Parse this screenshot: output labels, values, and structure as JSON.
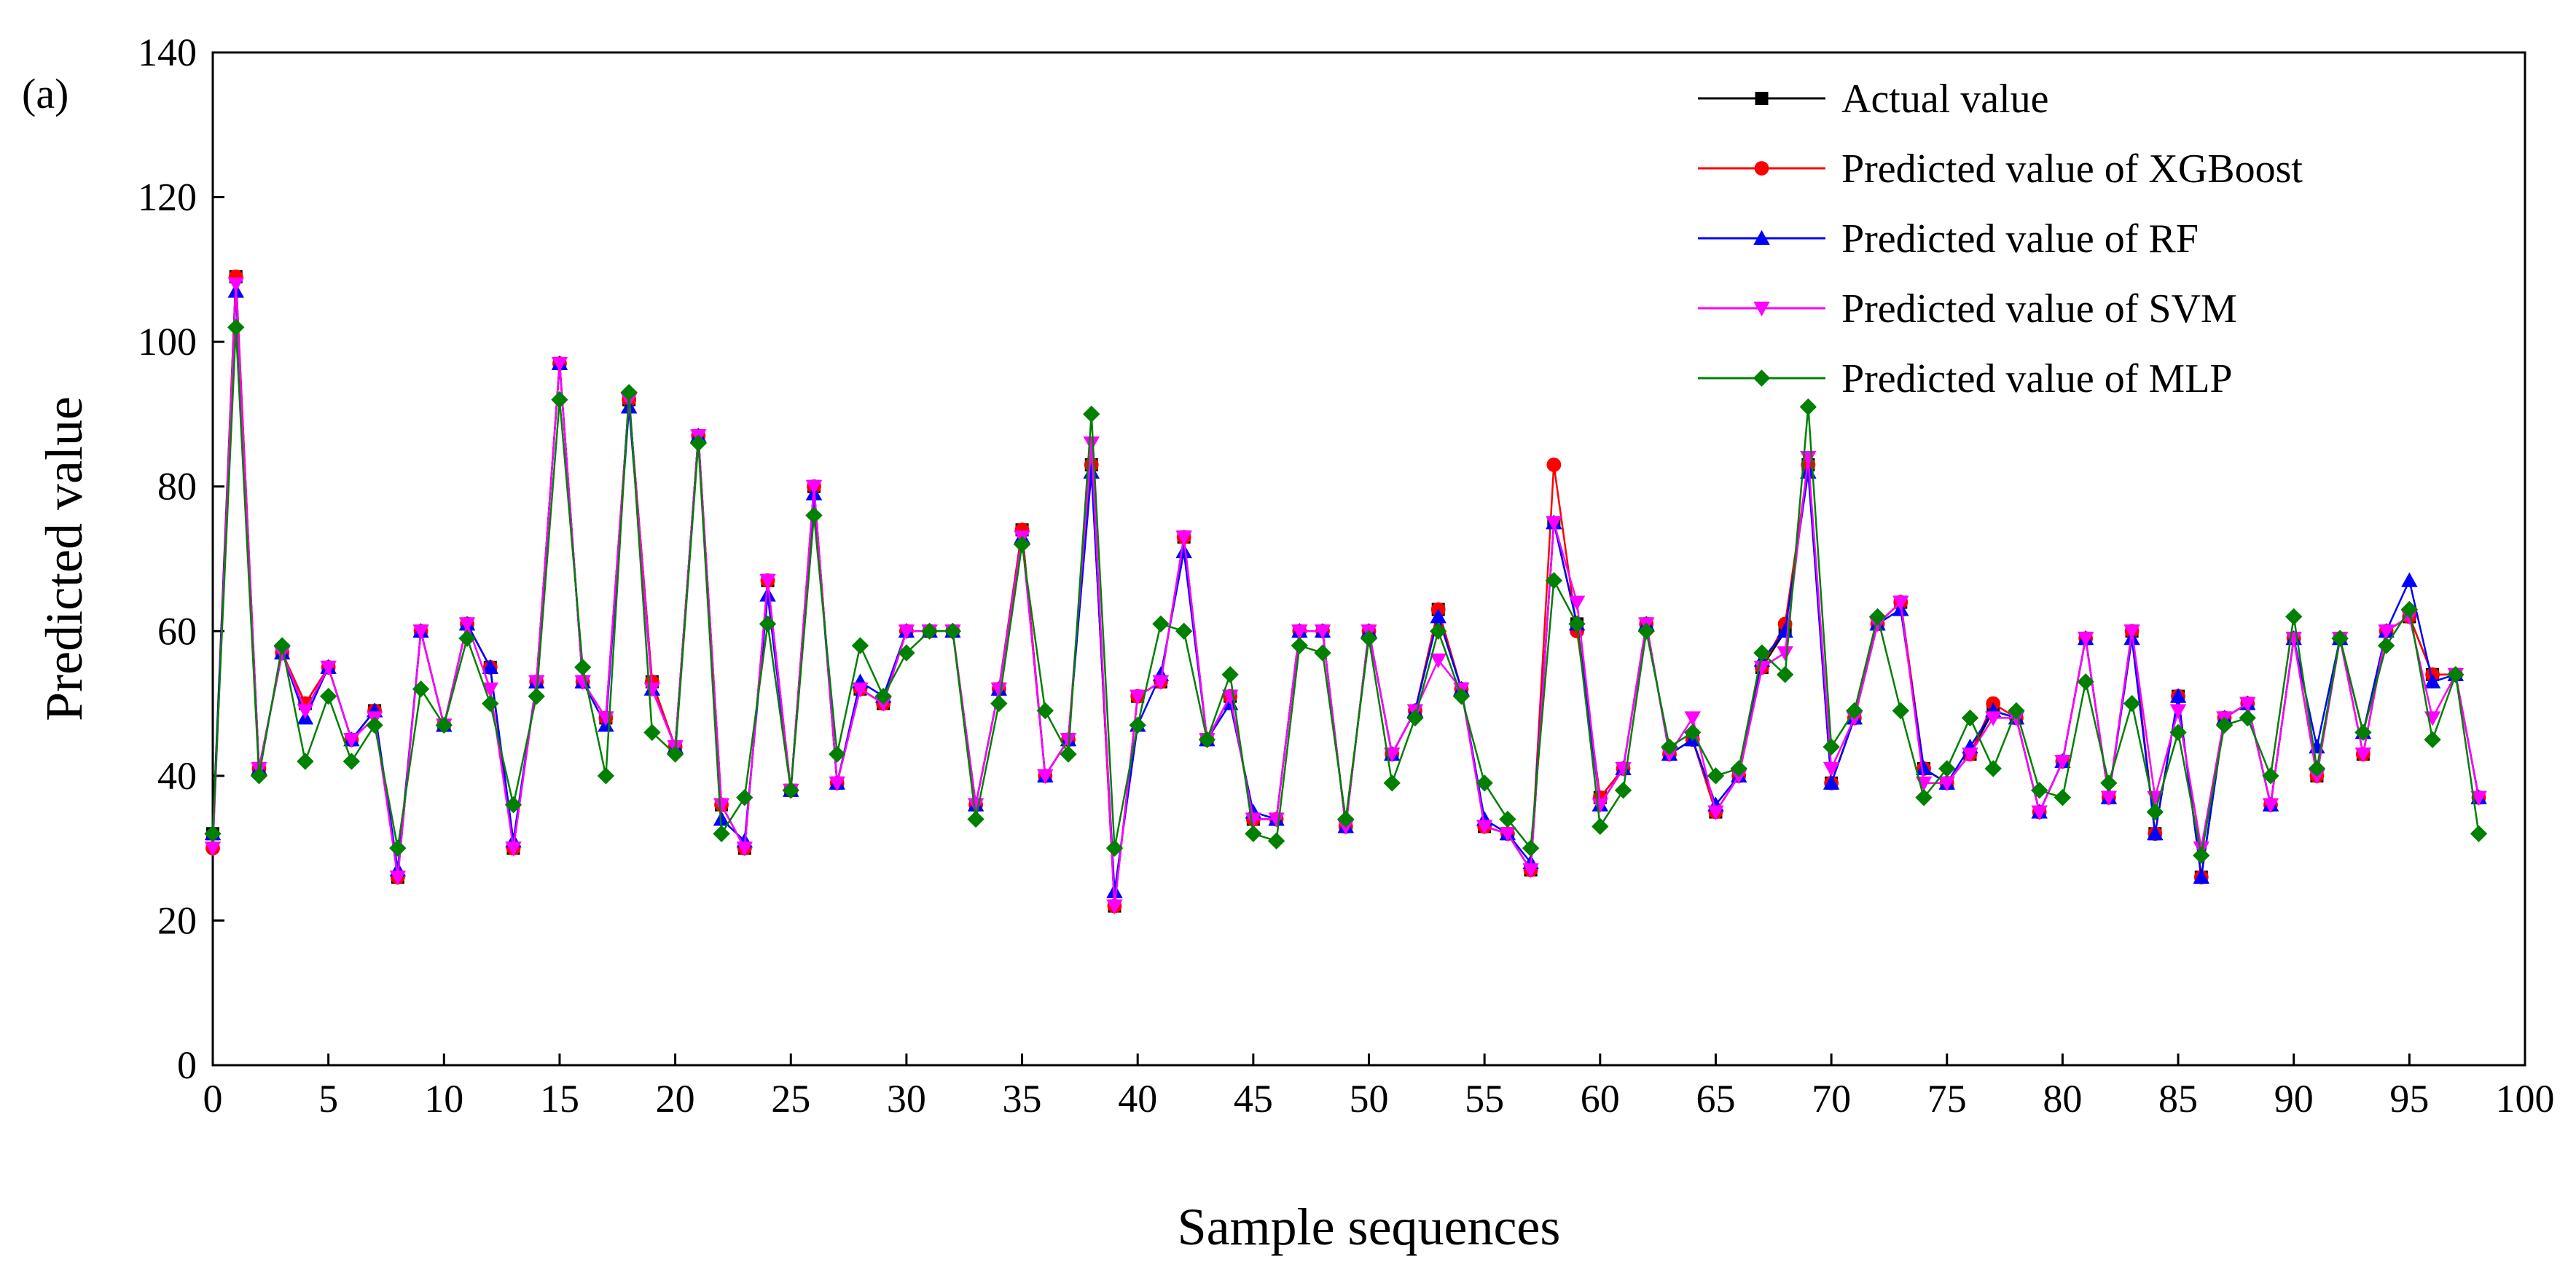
{
  "chart_data": {
    "type": "line",
    "panel_label": "(a)",
    "title": "",
    "xlabel": "Sample sequences",
    "ylabel": "Predicted value",
    "xlim": [
      0,
      100
    ],
    "ylim": [
      0,
      140
    ],
    "xticks": [
      0,
      5,
      10,
      15,
      20,
      25,
      30,
      35,
      40,
      45,
      50,
      55,
      60,
      65,
      70,
      75,
      80,
      85,
      90,
      95,
      100
    ],
    "yticks": [
      0,
      20,
      40,
      60,
      80,
      100,
      120,
      140
    ],
    "grid": false,
    "legend_position": "top-right",
    "x": [
      0,
      1,
      2,
      3,
      4,
      5,
      6,
      7,
      8,
      9,
      10,
      11,
      12,
      13,
      14,
      15,
      16,
      17,
      18,
      19,
      20,
      21,
      22,
      23,
      24,
      25,
      26,
      27,
      28,
      29,
      30,
      31,
      32,
      33,
      34,
      35,
      36,
      37,
      38,
      39,
      40,
      41,
      42,
      43,
      44,
      45,
      46,
      47,
      48,
      49,
      50,
      51,
      52,
      53,
      54,
      55,
      56,
      57,
      58,
      59,
      60,
      61,
      62,
      63,
      64,
      65,
      66,
      67,
      68,
      69,
      70,
      71,
      72,
      73,
      74,
      75,
      76,
      77,
      78,
      79,
      80,
      81,
      82,
      83,
      84,
      85,
      86,
      87,
      88,
      89,
      90,
      91,
      92,
      93,
      94,
      95,
      96,
      97,
      98
    ],
    "series": [
      {
        "name": "Actual value",
        "color": "#000000",
        "marker": "square",
        "values": [
          32,
          109,
          41,
          57,
          50,
          55,
          45,
          49,
          26,
          60,
          47,
          61,
          55,
          30,
          53,
          97,
          53,
          48,
          92,
          53,
          44,
          87,
          36,
          30,
          67,
          38,
          80,
          39,
          52,
          50,
          60,
          60,
          60,
          36,
          52,
          74,
          40,
          45,
          83,
          22,
          51,
          53,
          73,
          45,
          51,
          34,
          34,
          60,
          60,
          33,
          60,
          43,
          49,
          63,
          52,
          33,
          32,
          27,
          75,
          61,
          37,
          41,
          61,
          43,
          45,
          35,
          40,
          55,
          60,
          83,
          39,
          48,
          61,
          64,
          41,
          39,
          43,
          49,
          48,
          35,
          42,
          59,
          37,
          60,
          32,
          51,
          26,
          48,
          50,
          36,
          59,
          40,
          59,
          43,
          60,
          62,
          54,
          54,
          37
        ]
      },
      {
        "name": "Predicted value of XGBoost",
        "color": "#ff0000",
        "marker": "circle",
        "values": [
          30,
          109,
          41,
          57,
          50,
          55,
          45,
          49,
          26,
          60,
          47,
          61,
          55,
          30,
          53,
          97,
          53,
          48,
          92,
          53,
          44,
          87,
          36,
          30,
          67,
          38,
          80,
          39,
          52,
          50,
          60,
          60,
          60,
          36,
          52,
          74,
          40,
          45,
          83,
          22,
          51,
          53,
          73,
          45,
          51,
          34,
          34,
          60,
          60,
          33,
          60,
          43,
          49,
          63,
          52,
          33,
          32,
          27,
          83,
          60,
          37,
          41,
          61,
          43,
          45,
          35,
          40,
          55,
          61,
          83,
          39,
          48,
          61,
          64,
          41,
          39,
          43,
          50,
          48,
          35,
          42,
          59,
          37,
          60,
          32,
          51,
          26,
          48,
          50,
          36,
          59,
          40,
          59,
          43,
          60,
          62,
          54,
          54,
          37
        ]
      },
      {
        "name": "Predicted value of RF",
        "color": "#0000ff",
        "marker": "triangle-up",
        "values": [
          32,
          107,
          41,
          57,
          48,
          55,
          45,
          49,
          27,
          60,
          47,
          61,
          55,
          31,
          53,
          97,
          53,
          47,
          91,
          52,
          44,
          87,
          34,
          31,
          65,
          38,
          79,
          39,
          53,
          51,
          60,
          60,
          60,
          36,
          52,
          73,
          40,
          45,
          82,
          24,
          47,
          54,
          71,
          45,
          50,
          35,
          34,
          60,
          60,
          33,
          60,
          43,
          49,
          62,
          52,
          34,
          32,
          28,
          75,
          61,
          36,
          41,
          61,
          43,
          45,
          36,
          40,
          56,
          60,
          82,
          39,
          48,
          61,
          63,
          41,
          39,
          44,
          49,
          48,
          35,
          42,
          59,
          37,
          59,
          32,
          51,
          26,
          48,
          50,
          36,
          59,
          44,
          59,
          46,
          60,
          67,
          53,
          54,
          37
        ]
      },
      {
        "name": "Predicted value of SVM",
        "color": "#ff00ff",
        "marker": "triangle-down",
        "values": [
          30,
          108,
          41,
          57,
          49,
          55,
          45,
          48,
          26,
          60,
          47,
          61,
          52,
          30,
          53,
          97,
          53,
          48,
          92,
          52,
          44,
          87,
          36,
          30,
          67,
          38,
          80,
          39,
          52,
          50,
          60,
          60,
          60,
          36,
          52,
          73,
          40,
          45,
          86,
          22,
          51,
          53,
          73,
          45,
          51,
          34,
          34,
          60,
          60,
          33,
          60,
          43,
          49,
          56,
          52,
          33,
          32,
          27,
          75,
          64,
          36,
          41,
          61,
          43,
          48,
          35,
          40,
          55,
          57,
          84,
          41,
          48,
          61,
          64,
          39,
          39,
          43,
          48,
          48,
          35,
          42,
          59,
          37,
          60,
          37,
          49,
          30,
          48,
          50,
          36,
          59,
          40,
          59,
          43,
          60,
          62,
          48,
          54,
          37
        ]
      },
      {
        "name": "Predicted value of MLP",
        "color": "#008000",
        "marker": "diamond",
        "values": [
          32,
          102,
          40,
          58,
          42,
          51,
          42,
          47,
          30,
          52,
          47,
          59,
          50,
          36,
          51,
          92,
          55,
          40,
          93,
          46,
          43,
          86,
          32,
          37,
          61,
          38,
          76,
          43,
          58,
          51,
          57,
          60,
          60,
          34,
          50,
          72,
          49,
          43,
          90,
          30,
          47,
          61,
          60,
          45,
          54,
          32,
          31,
          58,
          57,
          34,
          59,
          39,
          48,
          60,
          51,
          39,
          34,
          30,
          67,
          61,
          33,
          38,
          60,
          44,
          46,
          40,
          41,
          57,
          54,
          91,
          44,
          49,
          62,
          49,
          37,
          41,
          48,
          41,
          49,
          38,
          37,
          53,
          39,
          50,
          35,
          46,
          29,
          47,
          48,
          40,
          62,
          41,
          59,
          46,
          58,
          63,
          45,
          54,
          32
        ]
      }
    ]
  }
}
